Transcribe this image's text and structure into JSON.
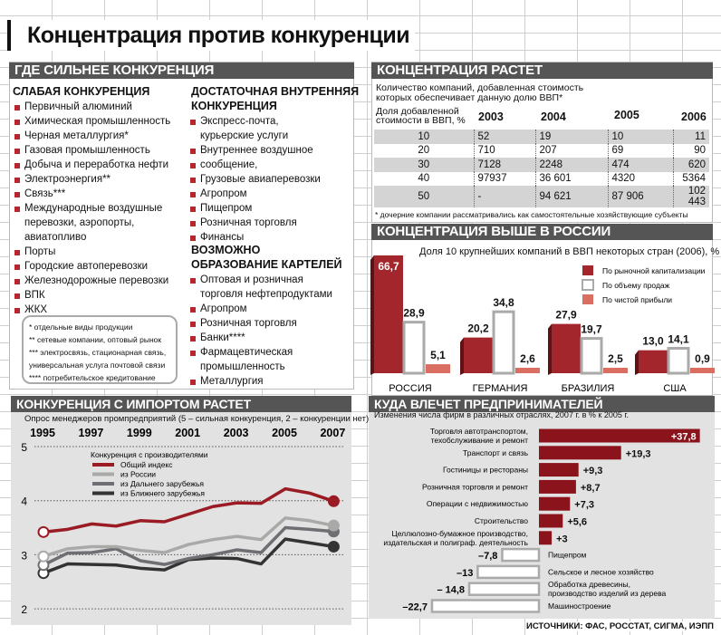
{
  "title": "Концентрация против конкуренции",
  "competition": {
    "header": "ГДЕ СИЛЬНЕЕ КОНКУРЕНЦИЯ",
    "weak": {
      "heading": "СЛАБАЯ КОНКУРЕНЦИЯ",
      "items": [
        "Первичный алюминий",
        "Химическая промышленность",
        "Черная металлургия*",
        "Газовая промышленность",
        "Добыча и переработка нефти",
        "Электроэнергия**",
        "Связь***",
        "Международные воздушные",
        "перевозки, аэропорты,",
        "авиатопливо",
        "Порты",
        "Городские автоперевозки",
        "Железнодорожные перевозки",
        "ВПК",
        "ЖКХ"
      ]
    },
    "sufficient": {
      "heading_1": "ДОСТАТОЧНАЯ ВНУТРЕННЯЯ",
      "heading_2": "КОНКУРЕНЦИЯ",
      "items": [
        "Экспресс-почта,",
        "курьерские услуги",
        "Внутреннее воздушное",
        "сообщение,",
        "Грузовые авиаперевозки",
        "Агропром",
        "Пищепром",
        "Розничная торговля",
        "Финансы"
      ]
    },
    "cartels": {
      "heading_1": "ВОЗМОЖНО",
      "heading_2": "ОБРАЗОВАНИЕ КАРТЕЛЕЙ",
      "items": [
        "Оптовая и розничная",
        "торговля нефтепродуктами",
        "Агропром",
        "Розничная торговля",
        "Банки****",
        "Фармацевтическая",
        "промышленность",
        "Металлургия"
      ]
    },
    "footnotes": [
      "* отдельные виды продукции",
      "** сетевые компании, оптовый рынок",
      "*** электросвязь, стационарная связь,",
      "универсальная услуга почтовой связи",
      "**** потребительское кредитование"
    ]
  },
  "concentration": {
    "header": "КОНЦЕНТРАЦИЯ РАСТЕТ",
    "caption_1": "Количество компаний, добавленная стоимость",
    "caption_2": "которых обеспечивает данную долю ВВП*",
    "col_label_1": "Доля добавленной",
    "col_label_2": "стоимости в ВВП, %",
    "years": [
      "2003",
      "2004",
      "2005",
      "2006"
    ],
    "rows": [
      [
        "10",
        "52",
        "19",
        "10",
        "11"
      ],
      [
        "20",
        "710",
        "207",
        "69",
        "90"
      ],
      [
        "30",
        "7128",
        "2248",
        "474",
        "620"
      ],
      [
        "40",
        "97937",
        "36 601",
        "4320",
        "5364"
      ],
      [
        "50",
        "-",
        "94 621",
        "87 906",
        "102 443"
      ]
    ],
    "footnote": "* дочерние компании рассматривались как самостоятельные хозяйствующие субъекты"
  },
  "chart_data": [
    {
      "type": "bar",
      "header": "КОНЦЕНТРАЦИЯ ВЫШЕ В РОССИИ",
      "title": "Доля 10 крупнейших компаний в ВВП некоторых стран (2006), %",
      "categories": [
        "РОССИЯ",
        "ГЕРМАНИЯ",
        "БРАЗИЛИЯ",
        "США"
      ],
      "series": [
        {
          "name": "По рыночной капитализации",
          "color": "#a3262c",
          "values": [
            66.7,
            20.2,
            27.9,
            13.0
          ],
          "labels": [
            "66,7",
            "20,2",
            "27,9",
            "13,0"
          ]
        },
        {
          "name": "По объему продаж",
          "color": "#ffffff",
          "values": [
            28.9,
            34.8,
            19.7,
            14.1
          ],
          "labels": [
            "28,9",
            "34,8",
            "19,7",
            "14,1"
          ]
        },
        {
          "name": "По чистой прибыли",
          "color": "#db6e62",
          "values": [
            5.1,
            2.6,
            2.5,
            0.9
          ],
          "labels": [
            "5,1",
            "2,6",
            "2,5",
            "0,9"
          ]
        }
      ],
      "legend": "top-right"
    },
    {
      "type": "line",
      "header": "КОНКУРЕНЦИЯ С ИМПОРТОМ РАСТЕТ",
      "title": "Опрос менеджеров промпредприятий (5 – сильная конкуренция, 2 – конкуренции нет)",
      "x": [
        1995,
        1996,
        1997,
        1998,
        1999,
        2000,
        2001,
        2002,
        2003,
        2004,
        2005,
        2006,
        2007
      ],
      "x_ticks": [
        "1995",
        "1997",
        "1999",
        "2001",
        "2003",
        "2005",
        "2007"
      ],
      "y_ticks": [
        "5",
        "4",
        "3",
        "2"
      ],
      "ylim": [
        2,
        5
      ],
      "legend_title": "Конкуренция с производителями",
      "series": [
        {
          "name": "Общий индекс",
          "color": "#9b1b24",
          "values": [
            3.42,
            3.47,
            3.57,
            3.53,
            3.63,
            3.61,
            3.75,
            3.89,
            3.96,
            3.95,
            4.22,
            4.14,
            3.99
          ]
        },
        {
          "name": "из России",
          "color": "#a9aaa8",
          "values": [
            2.97,
            3.11,
            3.15,
            3.15,
            3.08,
            3.04,
            3.19,
            3.28,
            3.34,
            3.28,
            3.68,
            3.63,
            3.54
          ]
        },
        {
          "name": "из Дальнего зарубежья",
          "color": "#6f6e72",
          "values": [
            2.81,
            3.03,
            3.04,
            3.11,
            2.89,
            2.82,
            2.93,
            3.0,
            3.09,
            3.04,
            3.5,
            3.47,
            3.43
          ]
        },
        {
          "name": "из Ближнего зарубежья",
          "color": "#333333",
          "values": [
            2.66,
            2.83,
            2.82,
            2.81,
            2.75,
            2.72,
            2.91,
            2.94,
            2.93,
            2.83,
            3.29,
            3.22,
            3.15
          ]
        }
      ],
      "legend": "top-left"
    },
    {
      "type": "bar",
      "header": "КУДА ВЛЕЧЕТ ПРЕДПРИНИМАТЕЛЕЙ",
      "title": "Изменения числа фирм в различных отраслях, 2007 г. в % к 2005 г.",
      "categories": [
        [
          "Торговля автотранспортом,",
          "техобслуживание и ремонт"
        ],
        [
          "Транспорт и связь"
        ],
        [
          "Гостиницы и рестораны"
        ],
        [
          "Розничная торговля и ремонт"
        ],
        [
          "Операции с недвижимостью"
        ],
        [
          "Строительство"
        ],
        [
          "Целлюлозно-бумажное производство,",
          "издательская и полиграф. деятельность"
        ],
        [
          "Пищепром"
        ],
        [
          "Сельское и лесное хозяйство"
        ],
        [
          "Обработка древесины,",
          "производство изделий из дерева"
        ],
        [
          "Машиностроение"
        ]
      ],
      "values": [
        37.8,
        19.3,
        9.3,
        8.7,
        7.3,
        5.6,
        3,
        -7.8,
        -13,
        -14.8,
        -22.7
      ],
      "labels": [
        "+37,8",
        "+19,3",
        "+9,3",
        "+8,7",
        "+7,3",
        "+5,6",
        "+3",
        "–7,8",
        "–13",
        "– 14,8",
        "–22,7"
      ]
    }
  ],
  "sources": "ИСТОЧНИКИ: ФАС, РОССТАТ, СИГМА, ИЭПП"
}
